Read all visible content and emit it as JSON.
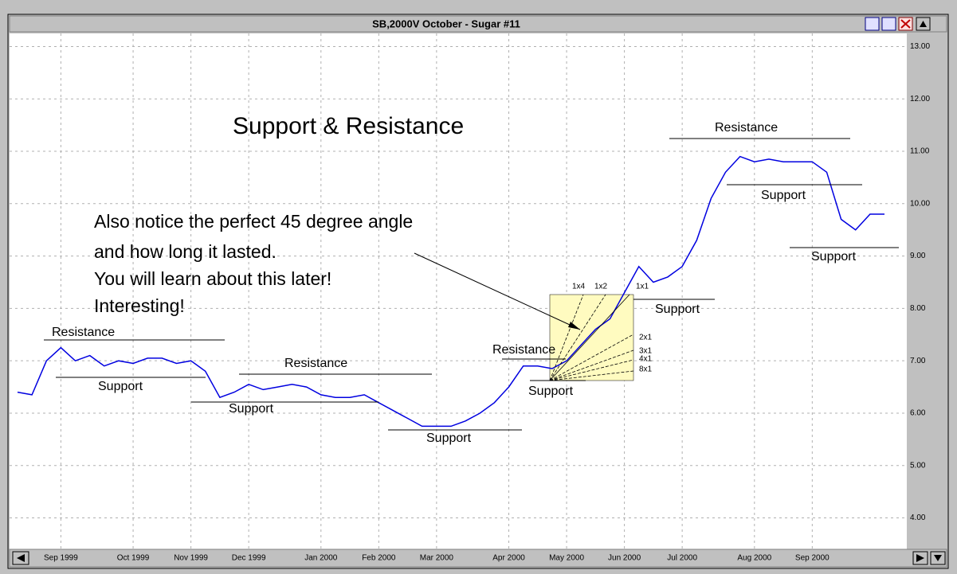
{
  "chart_data": {
    "type": "line",
    "title": "SB,2000V  October - Sugar #11",
    "categories": [
      null,
      null,
      null,
      "Sep 1999",
      null,
      null,
      null,
      null,
      "Oct 1999",
      null,
      null,
      null,
      "Nov 1999",
      null,
      null,
      null,
      "Dec 1999",
      null,
      null,
      null,
      null,
      "Jan 2000",
      null,
      null,
      null,
      "Feb 2000",
      null,
      null,
      null,
      "Mar 2000",
      null,
      null,
      null,
      null,
      "Apr 2000",
      null,
      null,
      null,
      "May 2000",
      null,
      null,
      null,
      "Jun 2000",
      null,
      null,
      null,
      "Jul 2000",
      null,
      null,
      null,
      null,
      "Aug 2000",
      null,
      null,
      null,
      "Sep 2000",
      null,
      null,
      null,
      null,
      null
    ],
    "values": [
      6.4,
      6.35,
      7.0,
      7.25,
      7.0,
      7.1,
      6.9,
      7.0,
      6.95,
      7.05,
      7.05,
      6.95,
      7.0,
      6.8,
      6.3,
      6.4,
      6.55,
      6.45,
      6.5,
      6.55,
      6.5,
      6.35,
      6.3,
      6.3,
      6.35,
      6.2,
      6.05,
      5.9,
      5.75,
      5.75,
      5.75,
      5.85,
      6.0,
      6.2,
      6.5,
      6.9,
      6.9,
      6.85,
      7.0,
      7.3,
      7.6,
      7.8,
      8.3,
      8.8,
      8.5,
      8.6,
      8.8,
      9.3,
      10.1,
      10.6,
      10.9,
      10.8,
      10.85,
      10.8,
      10.8,
      10.8,
      10.6,
      9.7,
      9.5,
      9.8,
      9.8
    ],
    "color": "#0000e0",
    "ylim": [
      3.4,
      13.25
    ],
    "yticks": [
      {
        "value": 4,
        "label": "4.00"
      },
      {
        "value": 5,
        "label": "5.00"
      },
      {
        "value": 6,
        "label": "6.00"
      },
      {
        "value": 7,
        "label": "7.00"
      },
      {
        "value": 8,
        "label": "8.00"
      },
      {
        "value": 9,
        "label": "9.00"
      },
      {
        "value": 10,
        "label": "10.00"
      },
      {
        "value": 11,
        "label": "11.00"
      },
      {
        "value": 12,
        "label": "12.00"
      },
      {
        "value": 13,
        "label": "13.00"
      }
    ],
    "grid": true,
    "heading": "Support & Resistance",
    "notes": [
      "Also notice the perfect 45 degree angle",
      "and how long it lasted.",
      "You will learn about this later!",
      "Interesting!"
    ],
    "annotations": [
      "Resistance",
      "Support",
      "Support",
      "Resistance",
      "Support",
      "Resistance",
      "Support",
      "Support",
      "Resistance",
      "Support",
      "Support"
    ],
    "fan_labels": [
      "1x4",
      "1x2",
      "1x1",
      "2x1",
      "3x1",
      "4x1",
      "8x1"
    ]
  }
}
